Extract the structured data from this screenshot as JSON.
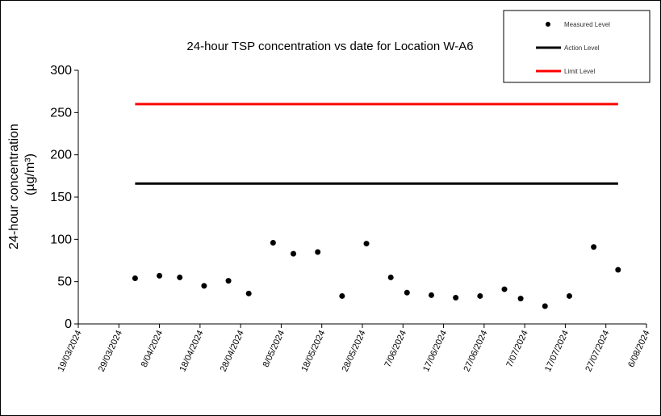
{
  "chart_data": {
    "type": "scatter",
    "title": "24-hour TSP concentration vs date for Location W-A6",
    "xlabel": "",
    "ylabel": "24-hour concentration",
    "ylabel_unit": "(µg/m³)",
    "ylim": [
      0,
      300
    ],
    "yticks": [
      0,
      50,
      100,
      150,
      200,
      250,
      300
    ],
    "xlim": [
      "2024-03-19",
      "2024-08-06"
    ],
    "xtick_dates": [
      "2024-03-19",
      "2024-03-29",
      "2024-04-08",
      "2024-04-18",
      "2024-04-28",
      "2024-05-08",
      "2024-05-18",
      "2024-05-28",
      "2024-06-07",
      "2024-06-17",
      "2024-06-27",
      "2024-07-07",
      "2024-07-17",
      "2024-07-27",
      "2024-08-06"
    ],
    "xtick_labels": [
      "19/03/2024",
      "29/03/2024",
      "8/04/2024",
      "18/04/2024",
      "28/04/2024",
      "8/05/2024",
      "18/05/2024",
      "28/05/2024",
      "7/06/2024",
      "17/06/2024",
      "27/06/2024",
      "7/07/2024",
      "17/07/2024",
      "27/07/2024",
      "6/08/2024"
    ],
    "grid": false,
    "legend_position": "top-right",
    "series": [
      {
        "name": "Measured Level",
        "kind": "points",
        "color": "#000000",
        "x": [
          "2024-04-02",
          "2024-04-08",
          "2024-04-13",
          "2024-04-19",
          "2024-04-25",
          "2024-04-30",
          "2024-05-06",
          "2024-05-11",
          "2024-05-17",
          "2024-05-23",
          "2024-05-29",
          "2024-06-04",
          "2024-06-08",
          "2024-06-14",
          "2024-06-20",
          "2024-06-26",
          "2024-07-02",
          "2024-07-06",
          "2024-07-12",
          "2024-07-18",
          "2024-07-24",
          "2024-07-30"
        ],
        "y": [
          54,
          57,
          55,
          45,
          51,
          36,
          96,
          83,
          85,
          33,
          95,
          55,
          37,
          34,
          31,
          33,
          41,
          30,
          21,
          33,
          91,
          64
        ]
      },
      {
        "name": "Action Level",
        "kind": "line",
        "color": "#000000",
        "x": [
          "2024-04-02",
          "2024-07-30"
        ],
        "y": [
          166,
          166
        ]
      },
      {
        "name": "Limit Level",
        "kind": "line",
        "color": "#ff0000",
        "x": [
          "2024-04-02",
          "2024-07-30"
        ],
        "y": [
          260,
          260
        ]
      }
    ]
  }
}
